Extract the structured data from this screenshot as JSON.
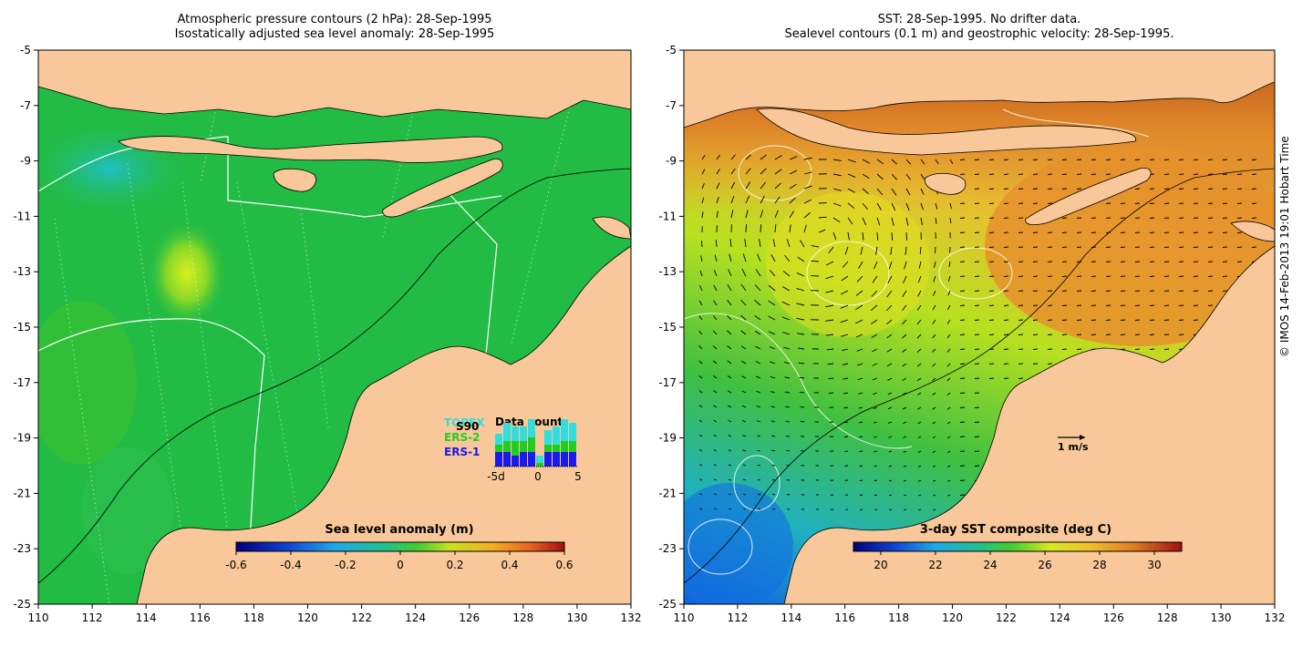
{
  "left_panel": {
    "title_line1": "Atmospheric pressure contours (2 hPa): 28-Sep-1995",
    "title_line2": "Isostatically adjusted sea level anomaly: 28-Sep-1995",
    "colorbar": {
      "label": "Sea level anomaly (m)",
      "ticks": [
        "-0.6",
        "-0.4",
        "-0.2",
        "0",
        "0.2",
        "0.4",
        "0.6"
      ]
    },
    "legend": {
      "satellites": [
        {
          "name": "TOPEX",
          "color": "#33dddd"
        },
        {
          "name": "ERS-2",
          "color": "#22cc22"
        },
        {
          "name": "ERS-1",
          "color": "#1a1aee"
        }
      ],
      "overlay_label": "S90",
      "title": "Data count",
      "axis_ticks": [
        "-5d",
        "0",
        "5"
      ],
      "bars": [
        {
          "topex": 3,
          "ers2": 2,
          "ers1": 4
        },
        {
          "topex": 5,
          "ers2": 3,
          "ers1": 4
        },
        {
          "topex": 4,
          "ers2": 4,
          "ers1": 3
        },
        {
          "topex": 4,
          "ers2": 3,
          "ers1": 4
        },
        {
          "topex": 5,
          "ers2": 4,
          "ers1": 4
        },
        {
          "topex": 2,
          "ers2": 1,
          "ers1": 0
        },
        {
          "topex": 4,
          "ers2": 2,
          "ers1": 4
        },
        {
          "topex": 5,
          "ers2": 2,
          "ers1": 4
        },
        {
          "topex": 6,
          "ers2": 3,
          "ers1": 4
        },
        {
          "topex": 5,
          "ers2": 3,
          "ers1": 4
        }
      ]
    }
  },
  "right_panel": {
    "title_line1": "SST: 28-Sep-1995. No drifter data.",
    "title_line2": "Sealevel contours (0.1 m) and geostrophic velocity: 28-Sep-1995.",
    "velocity_key": "1 m/s",
    "colorbar": {
      "label": "3-day SST composite (deg C)",
      "ticks": [
        "20",
        "22",
        "24",
        "26",
        "28",
        "30"
      ]
    }
  },
  "axes": {
    "x_ticks": [
      "110",
      "112",
      "114",
      "116",
      "118",
      "120",
      "122",
      "124",
      "126",
      "128",
      "130",
      "132"
    ],
    "y_ticks": [
      "-5",
      "-7",
      "-9",
      "-11",
      "-13",
      "-15",
      "-17",
      "-19",
      "-21",
      "-23",
      "-25"
    ]
  },
  "credit": "© IMOS 14-Feb-2013 19:01 Hobart Time",
  "colors": {
    "land": "#f8c89a",
    "sla_background": "#22bb44",
    "sst_warm": "#e2902a"
  }
}
